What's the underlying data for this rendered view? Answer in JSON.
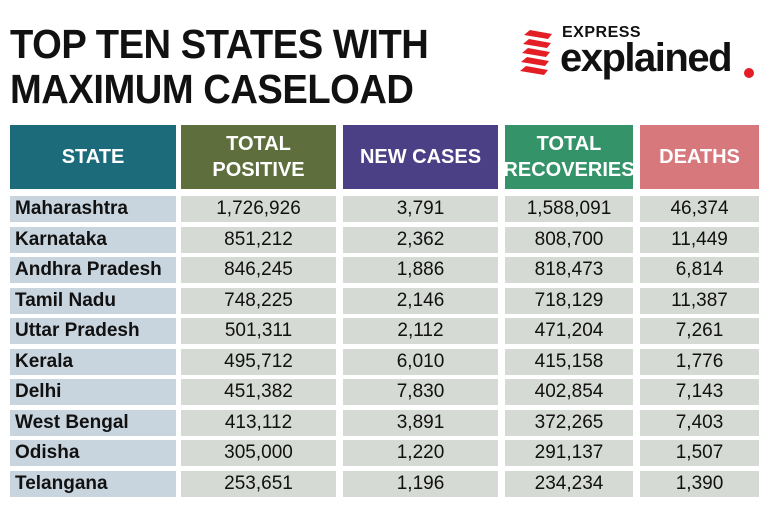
{
  "title": {
    "line1": "TOP TEN STATES WITH",
    "line2": "MAXIMUM CASELOAD"
  },
  "logo": {
    "express": "EXPRESS",
    "explained": "explained",
    "accent_color": "#e31e24"
  },
  "table": {
    "headers": [
      {
        "line1": "STATE",
        "line2": "",
        "color": "#1c6b7a"
      },
      {
        "line1": "TOTAL",
        "line2": "POSITIVE",
        "color": "#5e6e3c"
      },
      {
        "line1": "NEW CASES",
        "line2": "",
        "color": "#4b3f86"
      },
      {
        "line1": "TOTAL",
        "line2": "RECOVERIES",
        "color": "#35936a"
      },
      {
        "line1": "DEATHS",
        "line2": "",
        "color": "#d7787d"
      }
    ],
    "rows": [
      {
        "state": "Maharashtra",
        "total_positive": "1,726,926",
        "new_cases": "3,791",
        "total_recoveries": "1,588,091",
        "deaths": "46,374"
      },
      {
        "state": "Karnataka",
        "total_positive": "851,212",
        "new_cases": "2,362",
        "total_recoveries": "808,700",
        "deaths": "11,449"
      },
      {
        "state": "Andhra Pradesh",
        "total_positive": "846,245",
        "new_cases": "1,886",
        "total_recoveries": "818,473",
        "deaths": "6,814"
      },
      {
        "state": "Tamil Nadu",
        "total_positive": "748,225",
        "new_cases": "2,146",
        "total_recoveries": "718,129",
        "deaths": "11,387"
      },
      {
        "state": "Uttar Pradesh",
        "total_positive": "501,311",
        "new_cases": "2,112",
        "total_recoveries": "471,204",
        "deaths": "7,261"
      },
      {
        "state": "Kerala",
        "total_positive": "495,712",
        "new_cases": "6,010",
        "total_recoveries": "415,158",
        "deaths": "1,776"
      },
      {
        "state": "Delhi",
        "total_positive": "451,382",
        "new_cases": "7,830",
        "total_recoveries": "402,854",
        "deaths": "7,143"
      },
      {
        "state": "West Bengal",
        "total_positive": "413,112",
        "new_cases": "3,891",
        "total_recoveries": "372,265",
        "deaths": "7,403"
      },
      {
        "state": "Odisha",
        "total_positive": "305,000",
        "new_cases": "1,220",
        "total_recoveries": "291,137",
        "deaths": "1,507"
      },
      {
        "state": "Telangana",
        "total_positive": "253,651",
        "new_cases": "1,196",
        "total_recoveries": "234,234",
        "deaths": "1,390"
      }
    ]
  }
}
